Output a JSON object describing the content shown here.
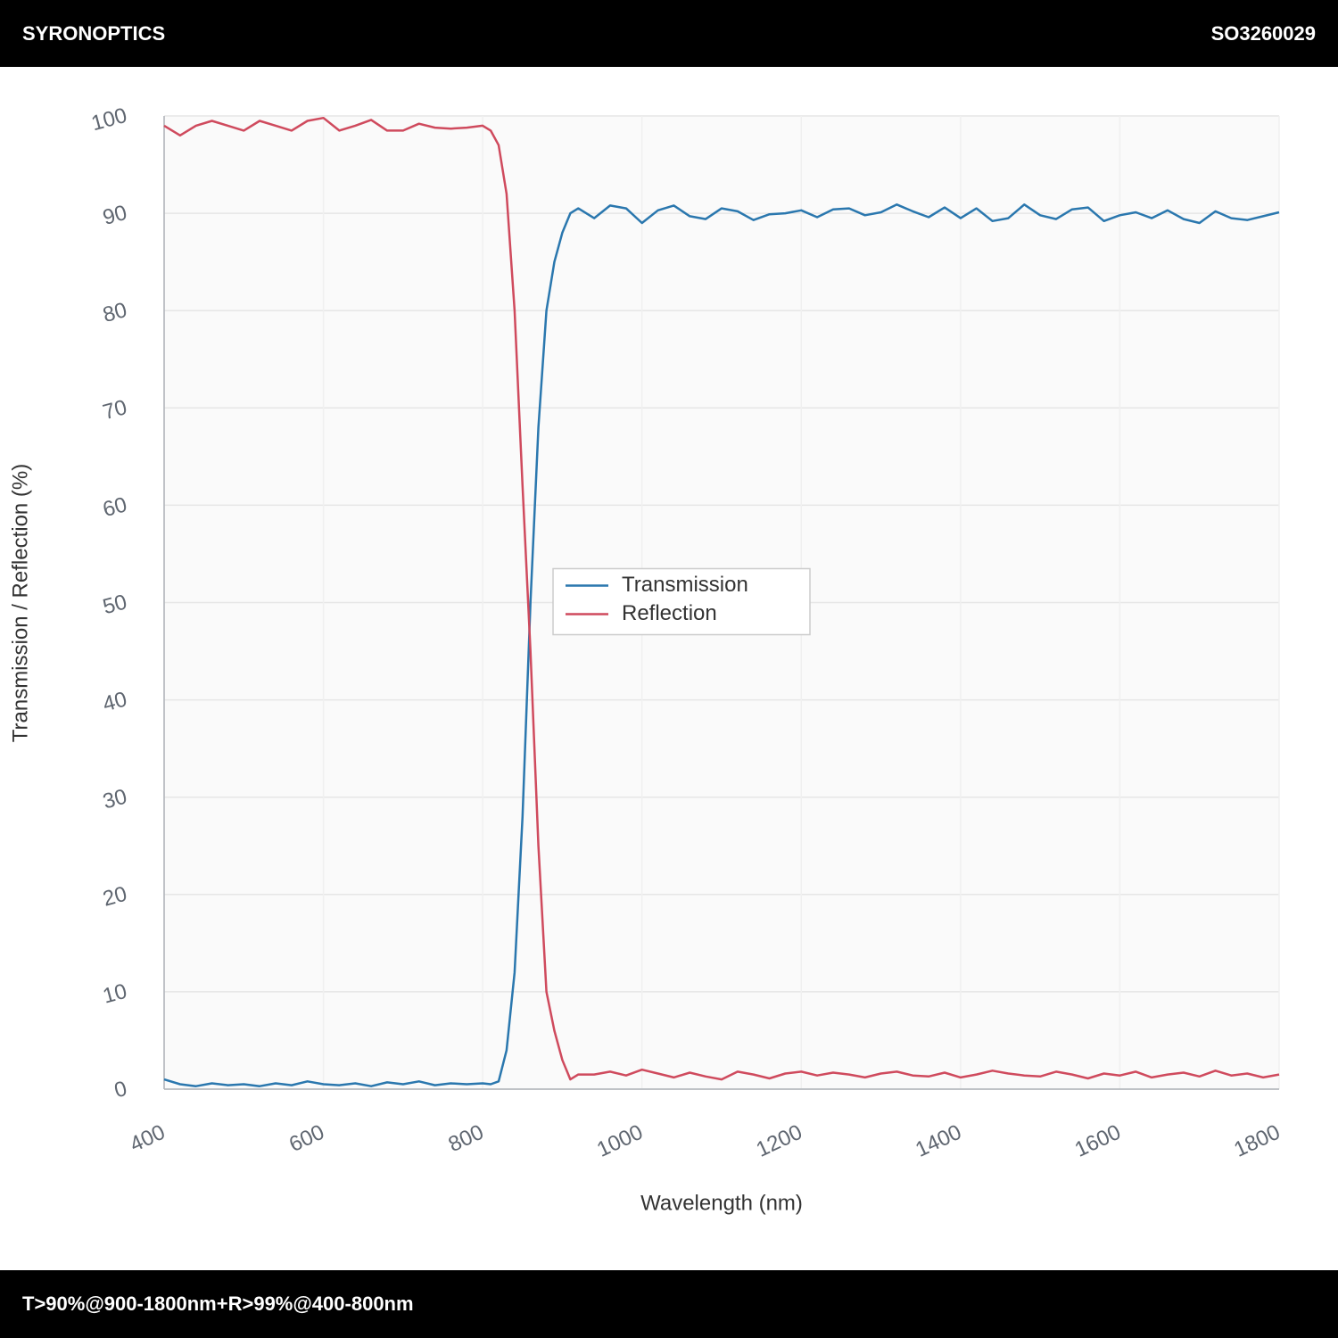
{
  "header": {
    "brand": "SYRONOPTICS",
    "code": "SO3260029"
  },
  "footer": {
    "text": "T>90%@900-1800nm+R>99%@400-800nm"
  },
  "chart_data": {
    "type": "line",
    "xlabel": "Wavelength (nm)",
    "ylabel": "Transmission / Reflection (%)",
    "x": [
      400,
      420,
      440,
      460,
      480,
      500,
      520,
      540,
      560,
      580,
      600,
      620,
      640,
      660,
      680,
      700,
      720,
      740,
      760,
      780,
      800,
      810,
      820,
      830,
      840,
      850,
      860,
      870,
      880,
      890,
      900,
      910,
      920,
      940,
      960,
      980,
      1000,
      1020,
      1040,
      1060,
      1080,
      1100,
      1120,
      1140,
      1160,
      1180,
      1200,
      1220,
      1240,
      1260,
      1280,
      1300,
      1320,
      1340,
      1360,
      1380,
      1400,
      1420,
      1440,
      1460,
      1480,
      1500,
      1520,
      1540,
      1560,
      1580,
      1600,
      1620,
      1640,
      1660,
      1680,
      1700,
      1720,
      1740,
      1760,
      1780,
      1800
    ],
    "series": [
      {
        "name": "Transmission",
        "color": "#2a77ae",
        "values": [
          1.0,
          0.5,
          0.3,
          0.6,
          0.4,
          0.5,
          0.3,
          0.6,
          0.4,
          0.8,
          0.5,
          0.4,
          0.6,
          0.3,
          0.7,
          0.5,
          0.8,
          0.4,
          0.6,
          0.5,
          0.6,
          0.5,
          0.8,
          4,
          12,
          28,
          50,
          68,
          80,
          85,
          88,
          90,
          90.5,
          89.5,
          90.8,
          90.5,
          89.0,
          90.3,
          90.8,
          89.7,
          89.4,
          90.5,
          90.2,
          89.3,
          89.9,
          90.0,
          90.3,
          89.6,
          90.4,
          90.5,
          89.8,
          90.1,
          90.9,
          90.2,
          89.6,
          90.6,
          89.5,
          90.5,
          89.2,
          89.5,
          90.9,
          89.8,
          89.4,
          90.4,
          90.6,
          89.2,
          89.8,
          90.1,
          89.5,
          90.3,
          89.4,
          89.0,
          90.2,
          89.5,
          89.3,
          89.7,
          90.1
        ]
      },
      {
        "name": "Reflection",
        "color": "#cf4a5d",
        "values": [
          99,
          98,
          99,
          99.5,
          99,
          98.5,
          99.5,
          99,
          98.5,
          99.5,
          99.8,
          98.5,
          99,
          99.6,
          98.5,
          98.5,
          99.2,
          98.8,
          98.7,
          98.8,
          99,
          98.5,
          97,
          92,
          80,
          62,
          45,
          25,
          10,
          6,
          3,
          1,
          1.5,
          1.5,
          1.8,
          1.4,
          2.0,
          1.6,
          1.2,
          1.7,
          1.3,
          1.0,
          1.8,
          1.5,
          1.1,
          1.6,
          1.8,
          1.4,
          1.7,
          1.5,
          1.2,
          1.6,
          1.8,
          1.4,
          1.3,
          1.7,
          1.2,
          1.5,
          1.9,
          1.6,
          1.4,
          1.3,
          1.8,
          1.5,
          1.1,
          1.6,
          1.4,
          1.8,
          1.2,
          1.5,
          1.7,
          1.3,
          1.9,
          1.4,
          1.6,
          1.2,
          1.5
        ]
      }
    ],
    "xlim": [
      400,
      1800
    ],
    "xticks": [
      400,
      600,
      800,
      1000,
      1200,
      1400,
      1600,
      1800
    ],
    "ylim": [
      0,
      100
    ],
    "yticks": [
      0,
      10,
      20,
      30,
      40,
      50,
      60,
      70,
      80,
      90,
      100
    ],
    "grid": true,
    "legend": "center"
  }
}
